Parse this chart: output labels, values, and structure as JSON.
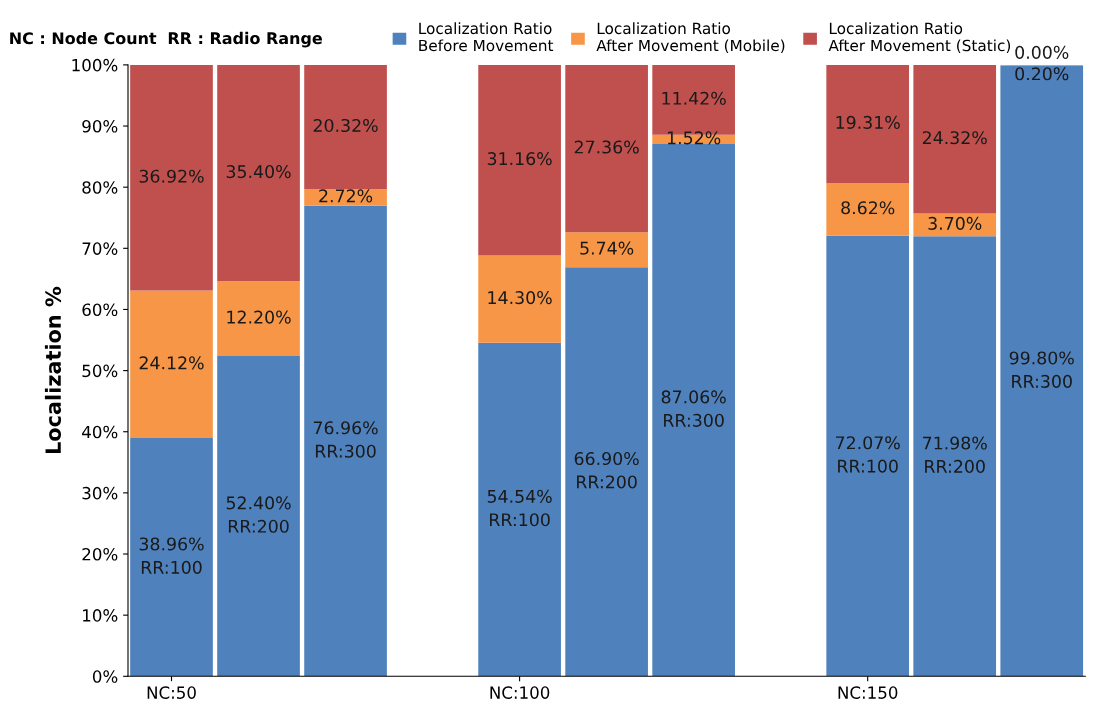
{
  "chart_data": {
    "type": "bar",
    "stacked": true,
    "ylabel": "Localization %",
    "categories": [
      "NC:50",
      null,
      null,
      null,
      "NC:100",
      null,
      null,
      null,
      "NC:150",
      null,
      null
    ],
    "series": [
      {
        "name": "Localization Ratio\nBefore Movement",
        "color": "#4f81bd",
        "values": [
          38.96,
          52.4,
          76.96,
          null,
          54.54,
          66.9,
          87.06,
          null,
          72.07,
          71.98,
          99.8
        ],
        "value_labels": [
          "38.96%\nRR:100",
          "52.40%\nRR:200",
          "76.96%\nRR:300",
          null,
          "54.54%\nRR:100",
          "66.90%\nRR:200",
          "87.06%\nRR:300",
          null,
          "72.07%\nRR:100",
          "71.98%\nRR:200",
          "99.80%\nRR:300"
        ]
      },
      {
        "name": "Localization Ratio\nAfter Movement (Mobile)",
        "color": "#f79646",
        "values": [
          24.12,
          12.2,
          2.72,
          null,
          14.3,
          5.74,
          1.52,
          null,
          8.62,
          3.7,
          0.2
        ],
        "value_labels": [
          "24.12%",
          "12.20%",
          "2.72%",
          null,
          "14.30%",
          "5.74%",
          "1.52%",
          null,
          "8.62%",
          "3.70%",
          "0.20%"
        ]
      },
      {
        "name": "Localization Ratio\nAfter Movement (Static)",
        "color": "#c0504d",
        "values": [
          36.92,
          35.4,
          20.32,
          null,
          31.16,
          27.36,
          11.42,
          null,
          19.31,
          24.32,
          0.0
        ],
        "value_labels": [
          "36.92%",
          "35.40%",
          "20.32%",
          null,
          "31.16%",
          "27.36%",
          "11.42%",
          null,
          "19.31%",
          "24.32%",
          "0.00%"
        ]
      }
    ],
    "ylim": [
      0,
      100
    ],
    "yticks": [
      {
        "value": 0,
        "label": "0%"
      },
      {
        "value": 10,
        "label": "10%"
      },
      {
        "value": 20,
        "label": "20%"
      },
      {
        "value": 30,
        "label": "30%"
      },
      {
        "value": 40,
        "label": "40%"
      },
      {
        "value": 50,
        "label": "50%"
      },
      {
        "value": 60,
        "label": "60%"
      },
      {
        "value": 70,
        "label": "70%"
      },
      {
        "value": 80,
        "label": "80%"
      },
      {
        "value": 90,
        "label": "90%"
      },
      {
        "value": 100,
        "label": "100%"
      }
    ],
    "grid": false,
    "legend": "top",
    "annotations": [
      "NC : Node Count",
      "RR : Radio Range"
    ]
  }
}
